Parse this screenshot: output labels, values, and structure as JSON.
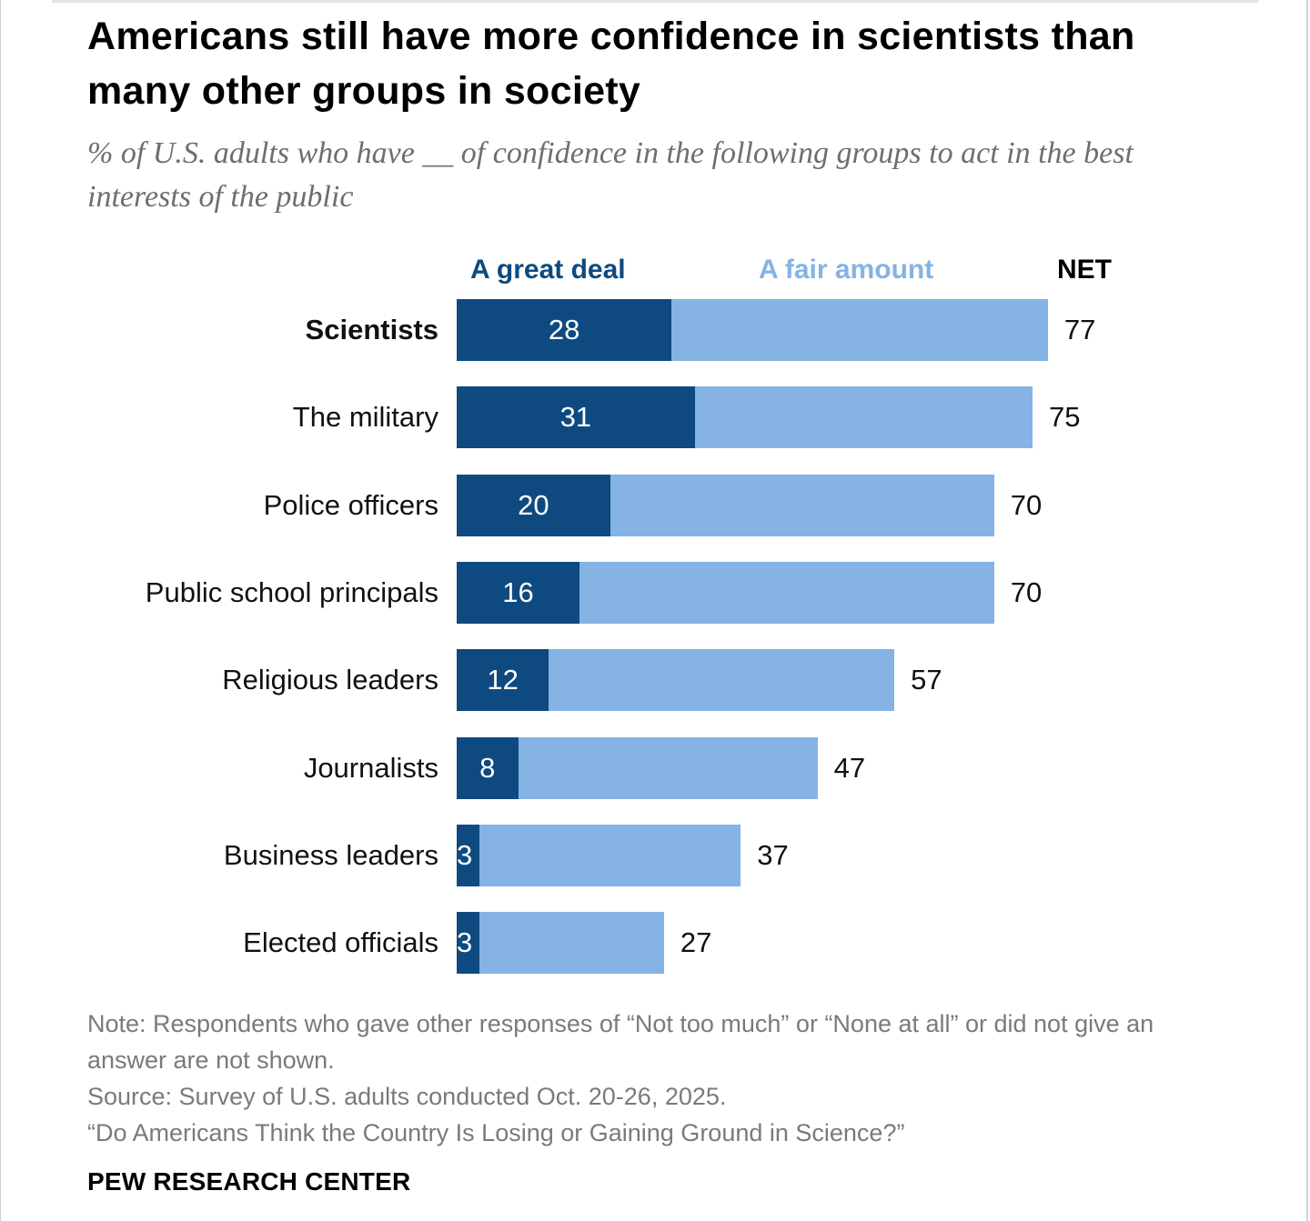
{
  "title": "Americans still have more confidence in scientists than many other groups in society",
  "subtitle": "% of U.S. adults who have __ of confidence in the following groups to act in the best interests of the public",
  "chart_data": {
    "type": "bar",
    "orientation": "horizontal",
    "stacked": true,
    "title": "Americans still have more confidence in scientists than many other groups in society",
    "subtitle": "% of U.S. adults who have __ of confidence in the following groups to act in the best interests of the public",
    "xlabel": "",
    "ylabel": "",
    "xlim": [
      0,
      100
    ],
    "grid": false,
    "legend_position": "top",
    "categories": [
      "Scientists",
      "The military",
      "Police officers",
      "Public school principals",
      "Religious leaders",
      "Journalists",
      "Business leaders",
      "Elected officials"
    ],
    "highlight_category": "Scientists",
    "series": [
      {
        "name": "A great deal",
        "color": "#0e4a80",
        "values": [
          28,
          31,
          20,
          16,
          12,
          8,
          3,
          3
        ]
      },
      {
        "name": "A fair amount",
        "color": "#84b3e4",
        "values": [
          49,
          44,
          50,
          54,
          45,
          39,
          34,
          24
        ]
      }
    ],
    "net": {
      "name": "NET",
      "values": [
        77,
        75,
        70,
        70,
        57,
        47,
        37,
        27
      ]
    },
    "value_labels": {
      "great_deal": [
        "28",
        "31",
        "20",
        "16",
        "12",
        "8",
        "3",
        "3"
      ],
      "net": [
        "77",
        "75",
        "70",
        "70",
        "57",
        "47",
        "37",
        "27"
      ]
    }
  },
  "legend": {
    "great_deal": "A great deal",
    "fair_amount": "A fair amount",
    "net": "NET"
  },
  "notes": {
    "note": "Note: Respondents who gave other responses of “Not too much” or “None at all” or did not give an answer are not shown.",
    "source": "Source: Survey of U.S. adults conducted Oct. 20-26, 2025.",
    "report": "“Do Americans Think the Country Is Losing or Gaining Ground in Science?”"
  },
  "brand": "PEW RESEARCH CENTER"
}
